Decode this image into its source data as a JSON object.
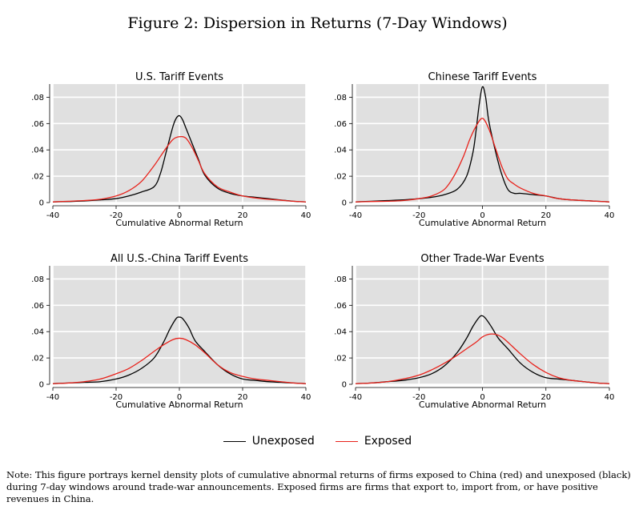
{
  "figure_title": "Figure 2: Dispersion in Returns (7-Day Windows)",
  "legend": [
    {
      "label": "Unexposed",
      "color": "#000000"
    },
    {
      "label": "Exposed",
      "color": "#e8221b"
    }
  ],
  "note": "Note: This figure portrays kernel density plots of cumulative abnormal returns of firms exposed to China (red) and unexposed (black) during 7-day windows around trade-war announcements. Exposed firms are firms that export to, import from, or have positive revenues in China.",
  "chart_data": [
    {
      "type": "line",
      "title": "U.S. Tariff Events",
      "xlabel": "Cumulative Abnormal Return",
      "ylabel": "",
      "xlim": [
        -40,
        40
      ],
      "ylim": [
        0,
        0.09
      ],
      "xticks": [
        -40,
        -20,
        0,
        20,
        40
      ],
      "xtick_labels": [
        "-40",
        "-20",
        "0",
        "20",
        "40"
      ],
      "yticks": [
        0,
        0.02,
        0.04,
        0.06,
        0.08
      ],
      "ytick_labels": [
        "0",
        ".02",
        ".04",
        ".06",
        ".08"
      ],
      "grid": true,
      "series": [
        {
          "name": "Unexposed",
          "color": "#000000",
          "x": [
            -40,
            -35,
            -30,
            -25,
            -20,
            -16,
            -12,
            -8,
            -6,
            -4,
            -2,
            -1,
            0,
            1,
            2,
            4,
            6,
            8,
            12,
            16,
            20,
            24,
            28,
            32,
            36,
            40
          ],
          "y": [
            0.0005,
            0.0008,
            0.0012,
            0.002,
            0.003,
            0.005,
            0.008,
            0.012,
            0.022,
            0.04,
            0.058,
            0.064,
            0.066,
            0.063,
            0.057,
            0.045,
            0.033,
            0.021,
            0.011,
            0.007,
            0.005,
            0.004,
            0.003,
            0.002,
            0.001,
            0.0005
          ]
        },
        {
          "name": "Exposed",
          "color": "#e8221b",
          "x": [
            -40,
            -35,
            -30,
            -25,
            -20,
            -16,
            -12,
            -8,
            -6,
            -4,
            -2,
            0,
            2,
            4,
            6,
            8,
            12,
            16,
            20,
            24,
            28,
            32,
            36,
            40
          ],
          "y": [
            0.0005,
            0.001,
            0.0015,
            0.0025,
            0.005,
            0.009,
            0.016,
            0.028,
            0.035,
            0.042,
            0.048,
            0.05,
            0.049,
            0.042,
            0.032,
            0.022,
            0.012,
            0.008,
            0.005,
            0.0035,
            0.0025,
            0.0018,
            0.001,
            0.0005
          ]
        }
      ]
    },
    {
      "type": "line",
      "title": "Chinese Tariff Events",
      "xlabel": "Cumulative Abnormal Return",
      "ylabel": "",
      "xlim": [
        -40,
        40
      ],
      "ylim": [
        0,
        0.09
      ],
      "xticks": [
        -40,
        -20,
        0,
        20,
        40
      ],
      "xtick_labels": [
        "-40",
        "-20",
        "0",
        "20",
        "40"
      ],
      "yticks": [
        0,
        0.02,
        0.04,
        0.06,
        0.08
      ],
      "ytick_labels": [
        "0",
        ".02",
        ".04",
        ".06",
        ".08"
      ],
      "grid": true,
      "series": [
        {
          "name": "Unexposed",
          "color": "#000000",
          "x": [
            -40,
            -35,
            -30,
            -25,
            -20,
            -16,
            -12,
            -8,
            -5,
            -3,
            -2,
            -1,
            0,
            1,
            2,
            4,
            6,
            8,
            10,
            12,
            16,
            20,
            24,
            28,
            32,
            36,
            40
          ],
          "y": [
            0.0005,
            0.001,
            0.0015,
            0.002,
            0.003,
            0.004,
            0.006,
            0.01,
            0.02,
            0.038,
            0.055,
            0.075,
            0.088,
            0.08,
            0.062,
            0.04,
            0.022,
            0.01,
            0.007,
            0.007,
            0.006,
            0.005,
            0.003,
            0.002,
            0.0015,
            0.001,
            0.0005
          ]
        },
        {
          "name": "Exposed",
          "color": "#e8221b",
          "x": [
            -40,
            -35,
            -30,
            -25,
            -20,
            -16,
            -12,
            -9,
            -6,
            -4,
            -2,
            0,
            2,
            4,
            6,
            8,
            10,
            12,
            16,
            20,
            24,
            28,
            32,
            36,
            40
          ],
          "y": [
            0.0005,
            0.0008,
            0.001,
            0.0015,
            0.003,
            0.005,
            0.01,
            0.02,
            0.035,
            0.048,
            0.058,
            0.064,
            0.056,
            0.042,
            0.028,
            0.018,
            0.014,
            0.011,
            0.007,
            0.005,
            0.003,
            0.002,
            0.0015,
            0.001,
            0.0005
          ]
        }
      ]
    },
    {
      "type": "line",
      "title": "All U.S.-China Tariff Events",
      "xlabel": "Cumulative Abnormal Return",
      "ylabel": "",
      "xlim": [
        -40,
        40
      ],
      "ylim": [
        0,
        0.09
      ],
      "xticks": [
        -40,
        -20,
        0,
        20,
        40
      ],
      "xtick_labels": [
        "-40",
        "-20",
        "0",
        "20",
        "40"
      ],
      "yticks": [
        0,
        0.02,
        0.04,
        0.06,
        0.08
      ],
      "ytick_labels": [
        "0",
        ".02",
        ".04",
        ".06",
        ".08"
      ],
      "grid": true,
      "series": [
        {
          "name": "Unexposed",
          "color": "#000000",
          "x": [
            -40,
            -35,
            -30,
            -25,
            -20,
            -16,
            -12,
            -8,
            -5,
            -3,
            -1,
            0,
            1,
            3,
            5,
            8,
            12,
            16,
            20,
            24,
            28,
            32,
            36,
            40
          ],
          "y": [
            0.0005,
            0.001,
            0.0015,
            0.002,
            0.004,
            0.007,
            0.012,
            0.02,
            0.032,
            0.042,
            0.05,
            0.051,
            0.05,
            0.043,
            0.033,
            0.025,
            0.015,
            0.008,
            0.004,
            0.003,
            0.002,
            0.0015,
            0.001,
            0.0005
          ]
        },
        {
          "name": "Exposed",
          "color": "#e8221b",
          "x": [
            -40,
            -35,
            -30,
            -25,
            -20,
            -16,
            -12,
            -8,
            -5,
            -2,
            0,
            2,
            5,
            8,
            12,
            16,
            20,
            24,
            28,
            32,
            36,
            40
          ],
          "y": [
            0.0005,
            0.001,
            0.002,
            0.004,
            0.008,
            0.012,
            0.018,
            0.025,
            0.03,
            0.034,
            0.035,
            0.034,
            0.03,
            0.024,
            0.015,
            0.009,
            0.006,
            0.004,
            0.003,
            0.002,
            0.001,
            0.0005
          ]
        }
      ]
    },
    {
      "type": "line",
      "title": "Other Trade-War Events",
      "xlabel": "Cumulative Abnormal Return",
      "ylabel": "",
      "xlim": [
        -40,
        40
      ],
      "ylim": [
        0,
        0.09
      ],
      "xticks": [
        -40,
        -20,
        0,
        20,
        40
      ],
      "xtick_labels": [
        "-40",
        "-20",
        "0",
        "20",
        "40"
      ],
      "yticks": [
        0,
        0.02,
        0.04,
        0.06,
        0.08
      ],
      "ytick_labels": [
        "0",
        ".02",
        ".04",
        ".06",
        ".08"
      ],
      "grid": true,
      "series": [
        {
          "name": "Unexposed",
          "color": "#000000",
          "x": [
            -40,
            -35,
            -30,
            -25,
            -20,
            -16,
            -12,
            -8,
            -5,
            -3,
            -1,
            0,
            1,
            3,
            5,
            8,
            12,
            16,
            20,
            24,
            28,
            32,
            36,
            40
          ],
          "y": [
            0.0005,
            0.001,
            0.002,
            0.003,
            0.005,
            0.008,
            0.014,
            0.024,
            0.035,
            0.044,
            0.051,
            0.052,
            0.05,
            0.043,
            0.035,
            0.027,
            0.016,
            0.009,
            0.005,
            0.004,
            0.003,
            0.002,
            0.001,
            0.0005
          ]
        },
        {
          "name": "Exposed",
          "color": "#e8221b",
          "x": [
            -40,
            -35,
            -30,
            -25,
            -20,
            -16,
            -12,
            -8,
            -5,
            -2,
            0,
            2,
            4,
            6,
            8,
            12,
            16,
            20,
            24,
            28,
            32,
            36,
            40
          ],
          "y": [
            0.0005,
            0.001,
            0.002,
            0.004,
            0.007,
            0.011,
            0.016,
            0.022,
            0.027,
            0.032,
            0.036,
            0.038,
            0.038,
            0.036,
            0.032,
            0.023,
            0.015,
            0.009,
            0.005,
            0.003,
            0.002,
            0.001,
            0.0005
          ]
        }
      ]
    }
  ]
}
